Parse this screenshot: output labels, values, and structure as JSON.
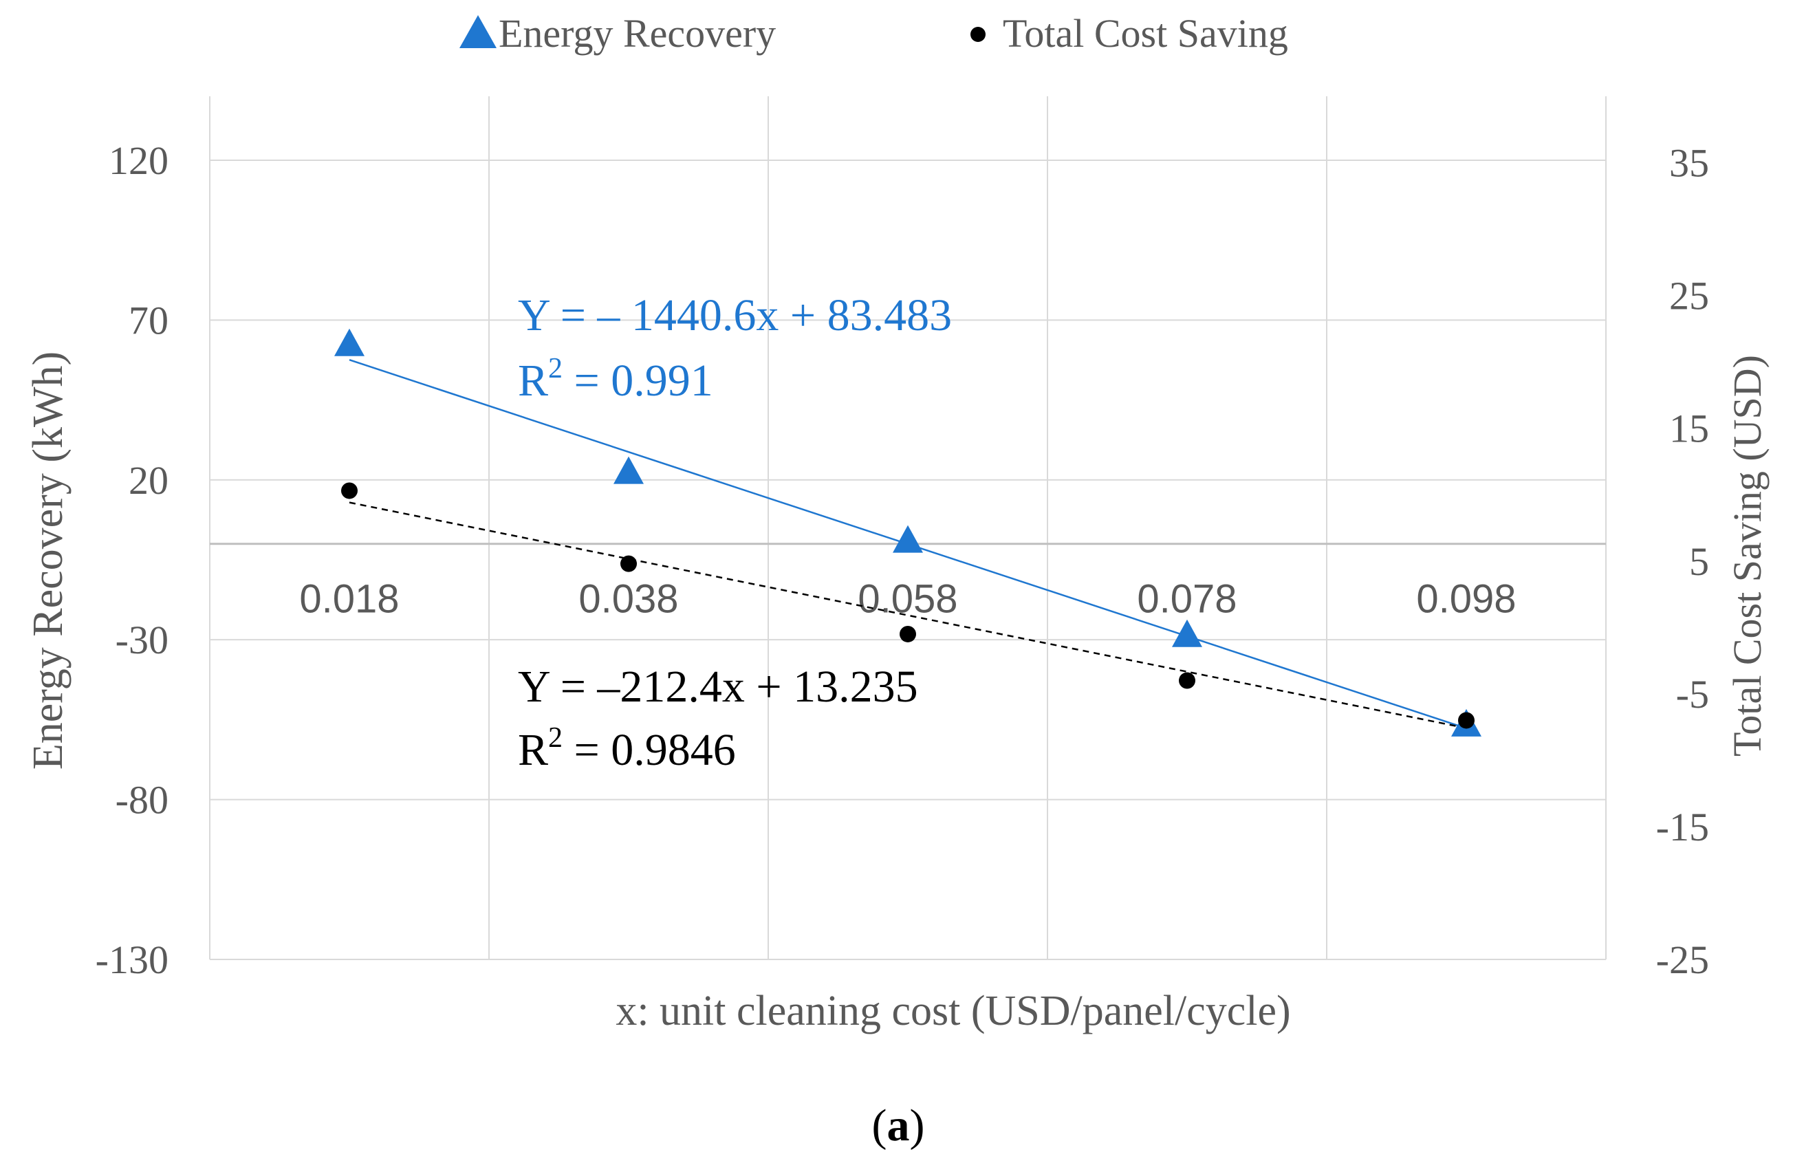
{
  "chart_data": {
    "type": "scatter",
    "xlabel": "x: unit cleaning cost (USD/panel/cycle)",
    "ylabel_left": "Energy Recovery (kWh)",
    "ylabel_right": "Total Cost Saving  (USD)",
    "caption_letter": "a",
    "caption_open": "(",
    "caption_close": ")",
    "x": [
      0.018,
      0.038,
      0.058,
      0.078,
      0.098
    ],
    "x_tick_labels": [
      "0.018",
      "0.038",
      "0.058",
      "0.078",
      "0.098"
    ],
    "ylim_left": [
      -130,
      140
    ],
    "ylim_right": [
      -25,
      40
    ],
    "yticks_left": [
      "120",
      "70",
      "20",
      "-30",
      "-80",
      "-130"
    ],
    "yticks_left_values": [
      120,
      70,
      20,
      -30,
      -80,
      -130
    ],
    "yticks_right": [
      "35",
      "25",
      "15",
      "5",
      "-5",
      "-15",
      "-25"
    ],
    "yticks_right_values": [
      35,
      25,
      15,
      5,
      -5,
      -15,
      -25
    ],
    "grid": true,
    "legend_position": "top",
    "series": [
      {
        "name": "Energy Recovery",
        "axis": "left",
        "marker": "triangle",
        "color": "#1f77d0",
        "values": [
          62,
          22,
          0.5,
          -29,
          -57
        ],
        "trendline": {
          "slope": -1440.6,
          "intercept": 83.483,
          "style": "solid"
        },
        "equation": "Y = – 1440.6x + 83.483",
        "r2_prefix": "R",
        "r2_sup": "2",
        "r2_value": " = 0.991"
      },
      {
        "name": "Total Cost Saving",
        "axis": "right",
        "marker": "circle",
        "color": "#000000",
        "values": [
          10.3,
          4.8,
          -0.5,
          -4,
          -7
        ],
        "trendline": {
          "slope": -212.4,
          "intercept": 13.235,
          "style": "dashed"
        },
        "equation": "Y = –212.4x + 13.235",
        "r2_prefix": "R",
        "r2_sup": "2",
        "r2_value": " = 0.9846"
      }
    ]
  }
}
